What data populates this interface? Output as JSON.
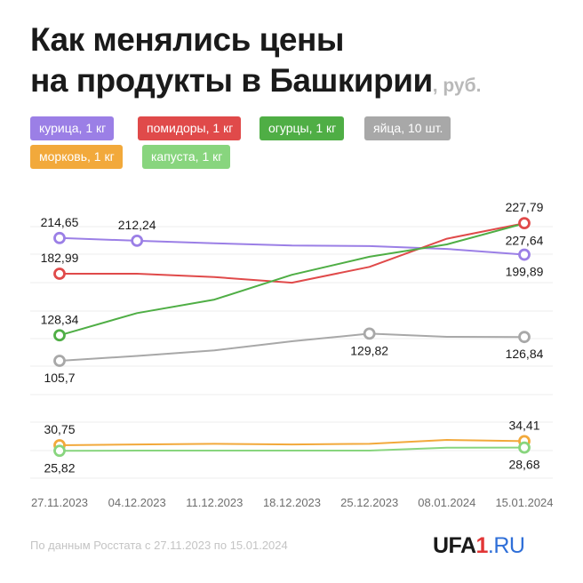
{
  "header": {
    "title_line1": "Как менялись цены",
    "title_line2": "на продукты в Башкирии",
    "unit": ", руб."
  },
  "legend": [
    {
      "label": "курица, 1 кг",
      "color": "#9b7fe6"
    },
    {
      "label": "помидоры, 1 кг",
      "color": "#e04a4a"
    },
    {
      "label": "огурцы, 1 кг",
      "color": "#4fae45"
    },
    {
      "label": "яйца, 10 шт.",
      "color": "#a8a8a8"
    },
    {
      "label": "морковь, 1 кг",
      "color": "#f2a93b"
    },
    {
      "label": "капуста, 1 кг",
      "color": "#88d57e"
    }
  ],
  "chart_data": {
    "type": "line",
    "categories": [
      "27.11.2023",
      "04.12.2023",
      "11.12.2023",
      "18.12.2023",
      "25.12.2023",
      "08.01.2024",
      "15.01.2024"
    ],
    "series": [
      {
        "name": "курица, 1 кг",
        "color": "#9b7fe6",
        "values": [
          214.65,
          212.24,
          210.0,
          208.0,
          207.5,
          205.0,
          199.89
        ]
      },
      {
        "name": "помидоры, 1 кг",
        "color": "#e04a4a",
        "values": [
          182.99,
          183.0,
          180.0,
          175.0,
          189.0,
          214.0,
          227.79
        ]
      },
      {
        "name": "огурцы, 1 кг",
        "color": "#4fae45",
        "values": [
          128.34,
          148.0,
          160.0,
          182.0,
          198.0,
          209.0,
          227.64
        ]
      },
      {
        "name": "яйца, 10 шт.",
        "color": "#a8a8a8",
        "values": [
          105.7,
          110.0,
          115.0,
          123.0,
          129.82,
          127.0,
          126.84
        ]
      },
      {
        "name": "морковь, 1 кг",
        "color": "#f2a93b",
        "values": [
          30.75,
          31.5,
          32.0,
          31.5,
          32.0,
          35.5,
          34.41
        ]
      },
      {
        "name": "капуста, 1 кг",
        "color": "#88d57e",
        "values": [
          25.82,
          26.0,
          26.0,
          26.0,
          26.0,
          28.6,
          28.68
        ]
      }
    ],
    "labels": [
      {
        "text": "214,65",
        "series": 0,
        "point": 0,
        "pos": "above"
      },
      {
        "text": "212,24",
        "series": 0,
        "point": 1,
        "pos": "above"
      },
      {
        "text": "199,89",
        "series": 0,
        "point": 6,
        "pos": "below"
      },
      {
        "text": "182,99",
        "series": 1,
        "point": 0,
        "pos": "above"
      },
      {
        "text": "227,79",
        "series": 1,
        "point": 6,
        "pos": "above"
      },
      {
        "text": "128,34",
        "series": 2,
        "point": 0,
        "pos": "above"
      },
      {
        "text": "227,64",
        "series": 2,
        "point": 6,
        "pos": "below"
      },
      {
        "text": "105,7",
        "series": 3,
        "point": 0,
        "pos": "below"
      },
      {
        "text": "129,82",
        "series": 3,
        "point": 4,
        "pos": "below"
      },
      {
        "text": "126,84",
        "series": 3,
        "point": 6,
        "pos": "below"
      },
      {
        "text": "30,75",
        "series": 4,
        "point": 0,
        "pos": "above"
      },
      {
        "text": "34,41",
        "series": 4,
        "point": 6,
        "pos": "above"
      },
      {
        "text": "25,82",
        "series": 5,
        "point": 0,
        "pos": "below"
      },
      {
        "text": "28,68",
        "series": 5,
        "point": 6,
        "pos": "below"
      }
    ],
    "markers": [
      {
        "series": 0,
        "point": 0
      },
      {
        "series": 0,
        "point": 1
      },
      {
        "series": 0,
        "point": 6
      },
      {
        "series": 1,
        "point": 0
      },
      {
        "series": 1,
        "point": 6
      },
      {
        "series": 2,
        "point": 0
      },
      {
        "series": 3,
        "point": 0
      },
      {
        "series": 3,
        "point": 4
      },
      {
        "series": 3,
        "point": 6
      },
      {
        "series": 4,
        "point": 0
      },
      {
        "series": 4,
        "point": 6
      },
      {
        "series": 5,
        "point": 0
      },
      {
        "series": 5,
        "point": 6
      }
    ],
    "title": "Как менялись цены на продукты в Башкирии",
    "xlabel": "",
    "ylabel": "руб.",
    "ylim": [
      0,
      240
    ],
    "grid": true
  },
  "footer": {
    "source": "По данным Росстата с 27.11.2023 по 15.01.2024",
    "logo_main": "UFA",
    "logo_one": "1",
    "logo_ru": ".RU"
  }
}
